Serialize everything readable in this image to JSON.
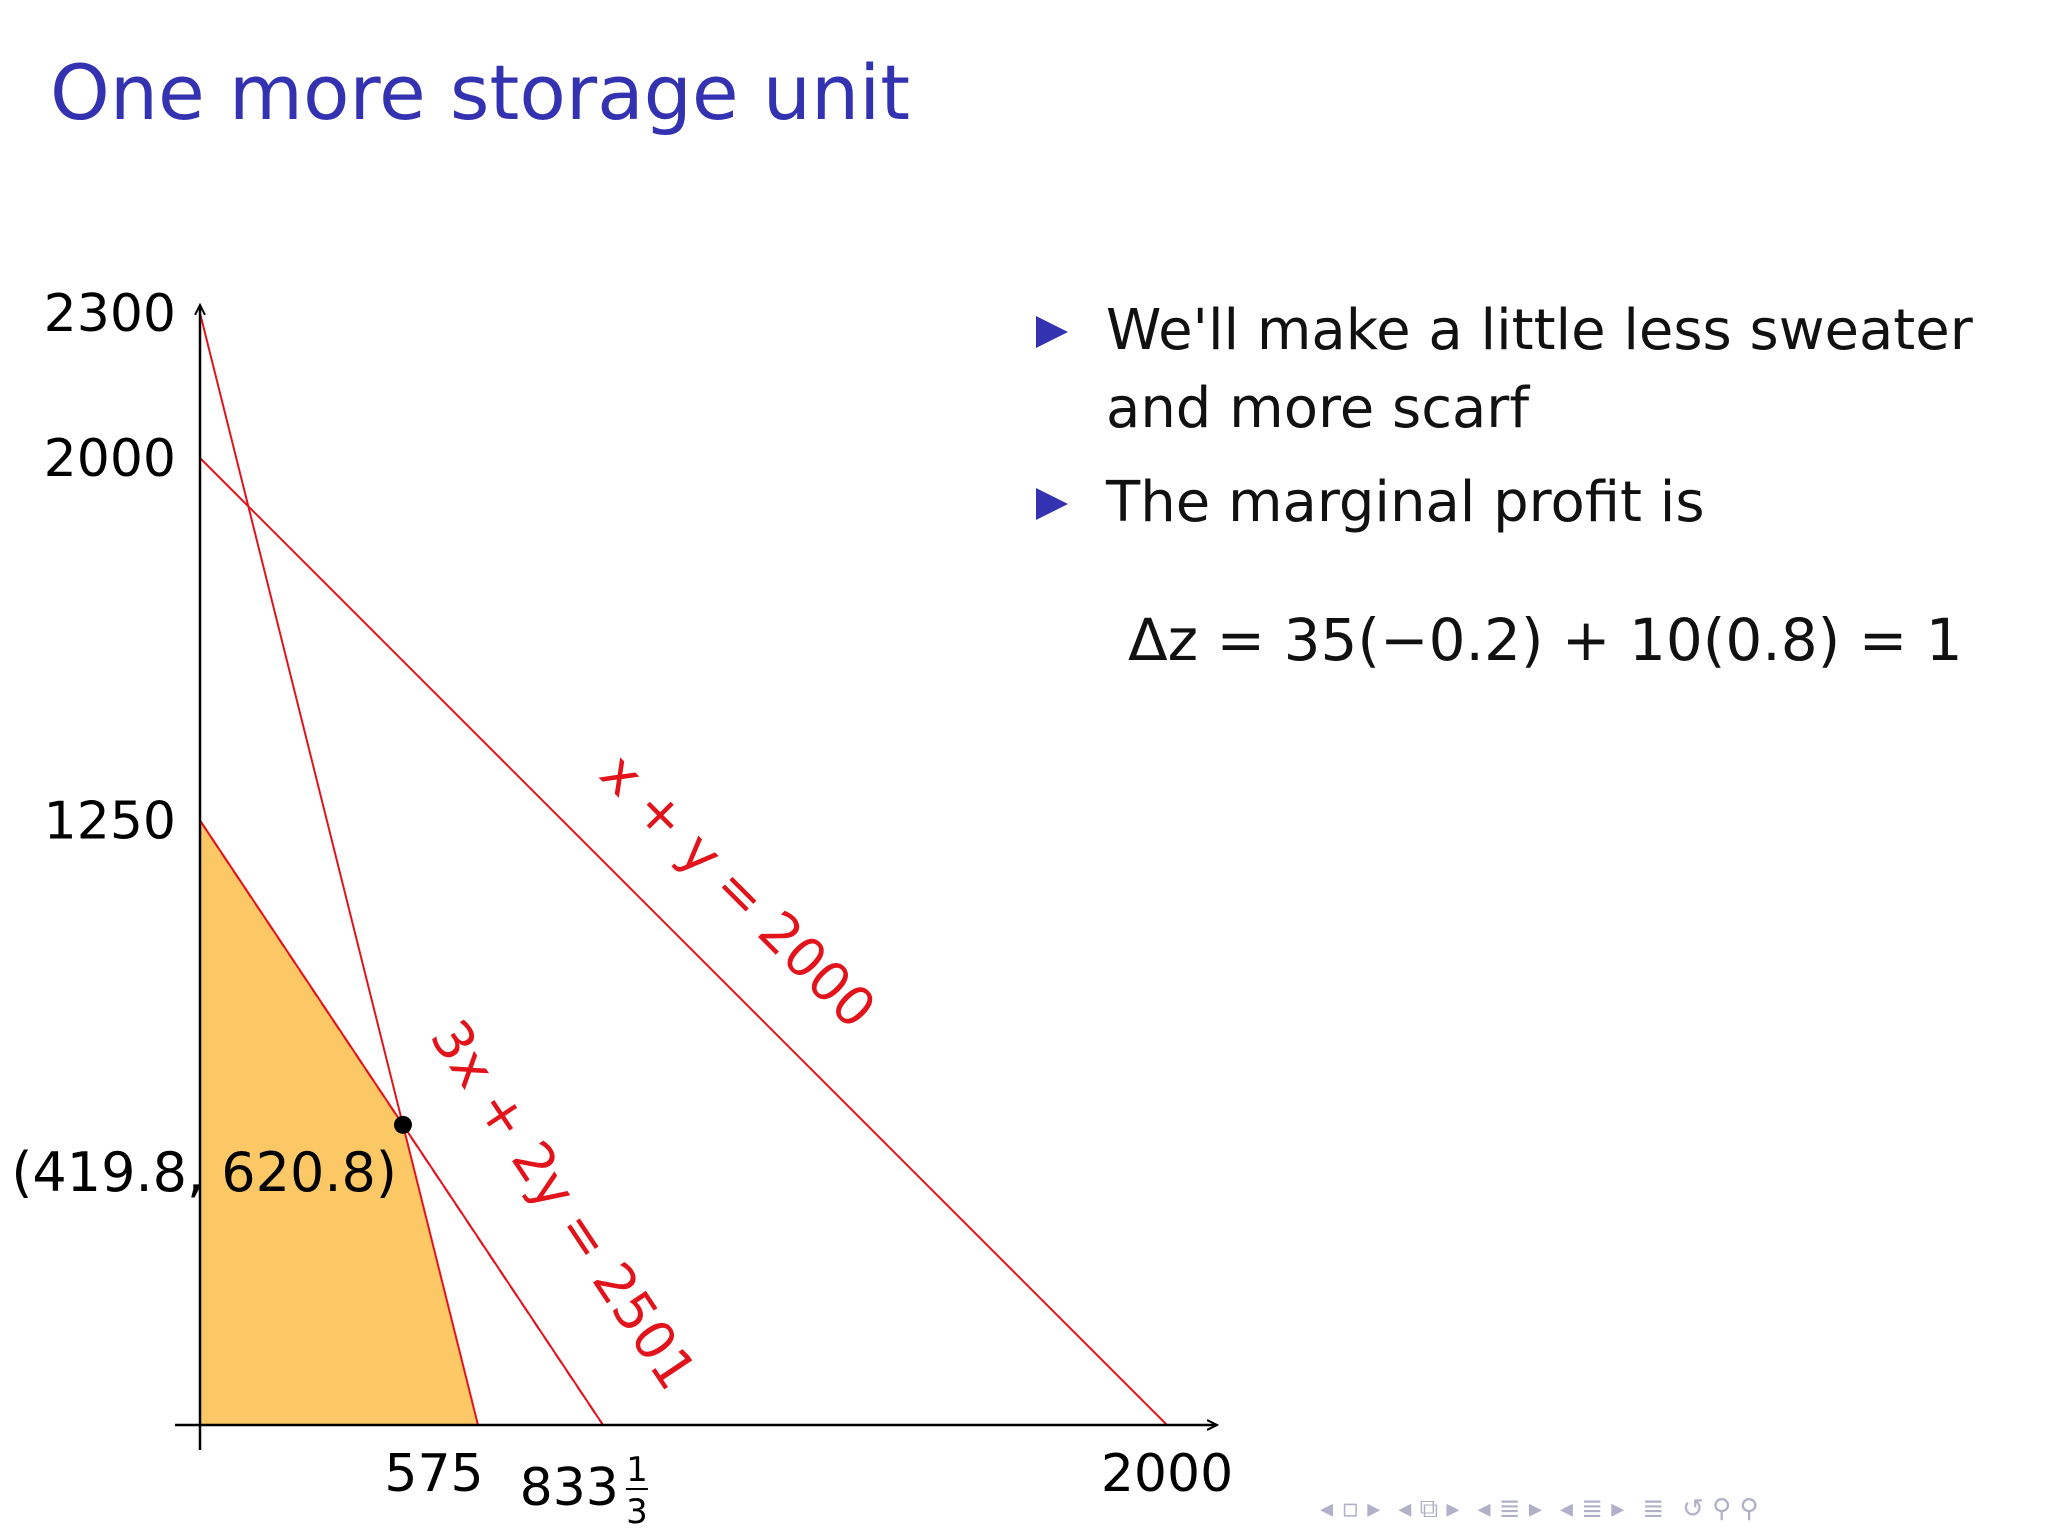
{
  "title": "One more storage unit",
  "colors": {
    "title": "#3333b2",
    "constraint": "#e3131b",
    "feasible_region": "#fcc865",
    "point": "#000000",
    "bullet": "#3333b2"
  },
  "bullets": [
    "We'll make a little less sweater and more scarf",
    "The marginal profit is"
  ],
  "formula": "Δz = 35(−0.2) + 10(0.8) = 1",
  "diagram": {
    "axis_range": {
      "x": [
        0,
        2000
      ],
      "y": [
        0,
        2300
      ]
    },
    "y_ticks": [
      "2300",
      "2000",
      "1250"
    ],
    "x_ticks": [
      {
        "value": 575,
        "label": "575"
      },
      {
        "value": 833.333,
        "label": "833⅓",
        "main": "833",
        "num": "1",
        "den": "3"
      },
      {
        "value": 2000,
        "label": "2000"
      }
    ],
    "lines": [
      {
        "name": "x-plus-y-line",
        "points": [
          [
            0,
            2000
          ],
          [
            2000,
            0
          ]
        ],
        "style": "solid",
        "label": "x + y = 2000"
      },
      {
        "name": "four-x-plus-y-line",
        "points": [
          [
            0,
            2300
          ],
          [
            575,
            0
          ]
        ],
        "style": "solid",
        "label": ""
      },
      {
        "name": "three-x-plus-two-y-line",
        "points": [
          [
            0,
            1250.5
          ],
          [
            833.667,
            0
          ]
        ],
        "style": "solid",
        "label": "3x + 2y = 2501"
      },
      {
        "name": "three-x-plus-two-y-old-line",
        "points": [
          [
            0,
            1250
          ],
          [
            833.333,
            0
          ]
        ],
        "style": "dashed",
        "label": ""
      }
    ],
    "feasible_region": [
      [
        0,
        0
      ],
      [
        0,
        1250
      ],
      [
        419.8,
        620.8
      ],
      [
        575,
        0
      ]
    ],
    "point": {
      "x": 419.8,
      "y": 620.8,
      "label": "(419.8, 620.8)"
    }
  },
  "nav_icons": [
    "nav-prev-icon",
    "nav-frame-icon",
    "nav-next-icon",
    "nav-subsection-icon",
    "nav-section-icon",
    "nav-align-icon",
    "nav-search-icon"
  ]
}
